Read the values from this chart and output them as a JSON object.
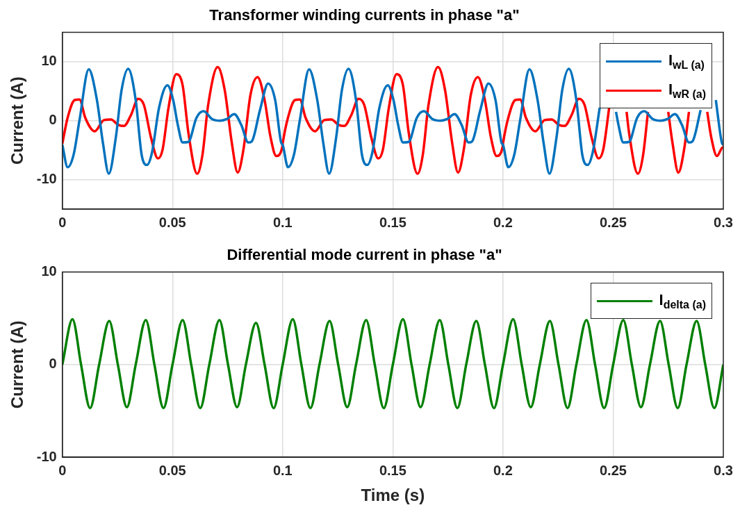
{
  "chart_data": [
    {
      "type": "line",
      "title": "Transformer winding currents in phase \"a\"",
      "ylabel": "Current (A)",
      "xlim": [
        0,
        0.3
      ],
      "xticks": [
        0,
        0.05,
        0.1,
        0.15,
        0.2,
        0.25,
        0.3
      ],
      "ylim": [
        -15,
        15
      ],
      "yticks": [
        -10,
        0,
        10
      ],
      "grid": true,
      "legend": "top right",
      "series": [
        {
          "name": "I$_{wL (a)}$",
          "color": "#0072bd",
          "x": [
            0,
            0.0024,
            0.0051,
            0.0078,
            0.012,
            0.0157,
            0.0184,
            0.0211,
            0.0243,
            0.0269,
            0.0299,
            0.0333,
            0.036,
            0.0384,
            0.0407,
            0.0439,
            0.0477,
            0.0503,
            0.0524,
            0.0546,
            0.0572,
            0.0609,
            0.0641,
            0.0679,
            0.0716,
            0.0748,
            0.078,
            0.0812,
            0.0844,
            0.086,
            0.0897,
            0.0934,
            0.0966,
            0.0993,
            0.1,
            0.1024,
            0.1051,
            0.1078,
            0.112,
            0.1157,
            0.1184,
            0.1211,
            0.1243,
            0.1269,
            0.1299,
            0.1333,
            0.136,
            0.1384,
            0.1407,
            0.1439,
            0.1477,
            0.1503,
            0.1524,
            0.1546,
            0.1572,
            0.1609,
            0.1641,
            0.1679,
            0.1716,
            0.1748,
            0.178,
            0.1812,
            0.1844,
            0.186,
            0.1897,
            0.1934,
            0.1966,
            0.1993,
            0.2,
            0.2024,
            0.2051,
            0.2078,
            0.212,
            0.2157,
            0.2184,
            0.2211,
            0.2243,
            0.2269,
            0.2299,
            0.2333,
            0.236,
            0.2384,
            0.2407,
            0.2439,
            0.2477,
            0.2503,
            0.2513,
            0.2524,
            0.2546,
            0.2572,
            0.2609,
            0.2641,
            0.2679,
            0.2716,
            0.2748,
            0.278,
            0.2812,
            0.2844,
            0.286,
            0.2897,
            0.2934,
            0.2966,
            0.2993,
            0.3
          ],
          "values": [
            -4.1,
            -7.9,
            -5.8,
            0.1,
            8.7,
            3.5,
            -3.7,
            -9.0,
            -2.8,
            5.2,
            8.8,
            3.5,
            -5.8,
            -7.5,
            -5.4,
            2.2,
            6.0,
            3.5,
            -0.7,
            -3.7,
            -3.6,
            0.5,
            1.6,
            0.3,
            0.0,
            0.3,
            1.1,
            -0.7,
            -3.7,
            -3.5,
            1.8,
            6.3,
            3.5,
            -3.7,
            -4.1,
            -7.9,
            -5.8,
            0.1,
            8.7,
            3.5,
            -3.7,
            -9.0,
            -2.8,
            5.2,
            8.8,
            3.5,
            -5.8,
            -7.5,
            -5.4,
            2.2,
            6.0,
            3.5,
            -0.7,
            -3.7,
            -3.6,
            0.5,
            1.6,
            0.3,
            0.0,
            0.3,
            1.1,
            -0.7,
            -3.7,
            -3.5,
            1.8,
            6.3,
            3.5,
            -3.7,
            -4.1,
            -7.9,
            -5.8,
            0.1,
            8.7,
            3.5,
            -3.7,
            -9.0,
            -2.8,
            5.2,
            8.8,
            3.5,
            -5.8,
            -7.5,
            -5.4,
            2.2,
            null,
            null,
            1.5,
            -0.7,
            -3.7,
            -3.6,
            0.5,
            1.6,
            0.3,
            0.0,
            0.3,
            1.1,
            -0.7,
            -3.7,
            -3.5,
            1.8,
            null,
            3.5,
            -3.7,
            -4.1
          ]
        },
        {
          "name": "I$_{wR (a)}$",
          "color": "#ff0000",
          "x": [
            0,
            0.0024,
            0.0056,
            0.0078,
            0.0104,
            0.0147,
            0.0189,
            0.0221,
            0.0253,
            0.028,
            0.0312,
            0.0344,
            0.037,
            0.0402,
            0.0434,
            0.0455,
            0.0482,
            0.0517,
            0.0546,
            0.0572,
            0.0612,
            0.0636,
            0.0662,
            0.0705,
            0.0737,
            0.0769,
            0.0796,
            0.0822,
            0.0854,
            0.0886,
            0.0918,
            0.0945,
            0.0971,
            0.0998,
            0.1,
            0.1024,
            0.1056,
            0.1078,
            0.1104,
            0.1147,
            0.1189,
            0.1221,
            0.1253,
            0.128,
            0.1312,
            0.1344,
            0.137,
            0.1402,
            0.1434,
            0.1455,
            0.1482,
            0.1517,
            0.1546,
            0.1572,
            0.1612,
            0.1636,
            0.1662,
            0.1705,
            0.1737,
            0.1769,
            0.1796,
            0.1822,
            0.1854,
            0.1886,
            0.1918,
            0.1945,
            0.1971,
            0.1998,
            0.2,
            0.2024,
            0.2056,
            0.2078,
            0.2104,
            0.2147,
            0.2189,
            0.2221,
            0.2253,
            0.228,
            0.2312,
            0.2344,
            0.237,
            0.2402,
            0.2434,
            0.2455,
            0.2482,
            0.2517,
            0.2546,
            0.2561,
            0.2572,
            0.2612,
            0.2636,
            0.2658,
            0.2662,
            0.2705,
            0.2737,
            0.275,
            0.2769,
            0.2796,
            0.2822,
            0.2844,
            0.2854,
            0.2886,
            0.2918,
            0.2927,
            0.2945,
            0.2971,
            0.2998,
            0.3
          ],
          "values": [
            -3.9,
            0.5,
            3.5,
            3.6,
            0.5,
            -1.8,
            0.1,
            0.2,
            -0.7,
            -0.9,
            1.0,
            3.7,
            2.7,
            -2.8,
            -6.4,
            -4.9,
            2.2,
            7.9,
            6.0,
            -2.0,
            -9.0,
            -5.8,
            2.7,
            9.1,
            5.2,
            -3.7,
            -8.8,
            -4.9,
            4.4,
            7.4,
            3.5,
            -2.8,
            -6.0,
            -4.5,
            -3.9,
            0.5,
            3.5,
            3.6,
            0.5,
            -1.8,
            0.1,
            0.2,
            -0.7,
            -0.9,
            1.0,
            3.7,
            2.7,
            -2.8,
            -6.4,
            -4.9,
            2.2,
            7.9,
            6.0,
            -2.0,
            -9.0,
            -5.8,
            2.7,
            9.1,
            5.2,
            -3.7,
            -8.8,
            -4.9,
            4.4,
            7.4,
            3.5,
            -2.8,
            -6.0,
            -4.5,
            -3.9,
            0.5,
            3.5,
            3.6,
            0.5,
            -1.8,
            0.1,
            0.2,
            -0.7,
            -0.9,
            1.0,
            3.7,
            2.7,
            -2.8,
            -6.4,
            -4.9,
            2.2,
            null,
            null,
            1.5,
            -2.0,
            -9.0,
            -5.8,
            1.5,
            null,
            null,
            null,
            1.5,
            -3.7,
            -8.8,
            -4.9,
            1.5,
            null,
            null,
            null,
            1.5,
            -2.8,
            -6.0,
            -4.5,
            -4.5
          ]
        }
      ]
    },
    {
      "type": "line",
      "title": "Differential mode current in phase \"a\"",
      "xlabel": "Time (s)",
      "ylabel": "Current (A)",
      "xlim": [
        0,
        0.3
      ],
      "xticks": [
        0,
        0.05,
        0.1,
        0.15,
        0.2,
        0.25,
        0.3
      ],
      "ylim": [
        -10,
        10
      ],
      "yticks": [
        -10,
        0,
        10
      ],
      "grid": true,
      "legend": "top right",
      "series": [
        {
          "name": "I$_{delta (a)}$",
          "color": "#008000",
          "x": [
            0,
            0.0046,
            0.0085,
            0.0126,
            0.0167,
            0.0213,
            0.0252,
            0.0293,
            0.0333,
            0.0379,
            0.0418,
            0.0459,
            0.05,
            0.0546,
            0.0585,
            0.0626,
            0.0667,
            0.0713,
            0.0752,
            0.0793,
            0.0833,
            0.0879,
            0.0918,
            0.0959,
            0.1,
            0.1046,
            0.1085,
            0.1126,
            0.1167,
            0.1213,
            0.1252,
            0.1293,
            0.1333,
            0.1379,
            0.1418,
            0.1459,
            0.15,
            0.1546,
            0.1585,
            0.1626,
            0.1667,
            0.1713,
            0.1752,
            0.1793,
            0.1833,
            0.1879,
            0.1918,
            0.1959,
            0.2,
            0.2046,
            0.2085,
            0.2126,
            0.2167,
            0.2213,
            0.2252,
            0.2293,
            0.2333,
            0.2379,
            0.2418,
            0.2459,
            0.25,
            0.2546,
            0.2585,
            0.2626,
            0.2667,
            0.2713,
            0.2752,
            0.2793,
            0.2833,
            0.2879,
            0.2918,
            0.2959,
            0.3
          ],
          "values": [
            0,
            4.9,
            0,
            -4.7,
            0,
            4.7,
            0,
            -4.6,
            0,
            4.8,
            0,
            -4.7,
            0,
            4.8,
            0,
            -4.7,
            0,
            4.8,
            0,
            -4.6,
            0,
            4.5,
            0,
            -4.7,
            0,
            4.9,
            0,
            -4.7,
            0,
            4.7,
            0,
            -4.6,
            0,
            4.8,
            0,
            -4.7,
            0,
            4.9,
            0,
            -4.6,
            0,
            4.8,
            0,
            -4.7,
            0,
            4.7,
            0,
            -4.7,
            0,
            4.9,
            0,
            -4.6,
            0,
            4.7,
            0,
            -4.7,
            0,
            4.8,
            0,
            -4.7,
            0,
            4.8,
            0,
            -4.6,
            0,
            4.7,
            0,
            -4.7,
            0,
            4.7,
            0,
            -4.7,
            0
          ]
        }
      ]
    }
  ]
}
